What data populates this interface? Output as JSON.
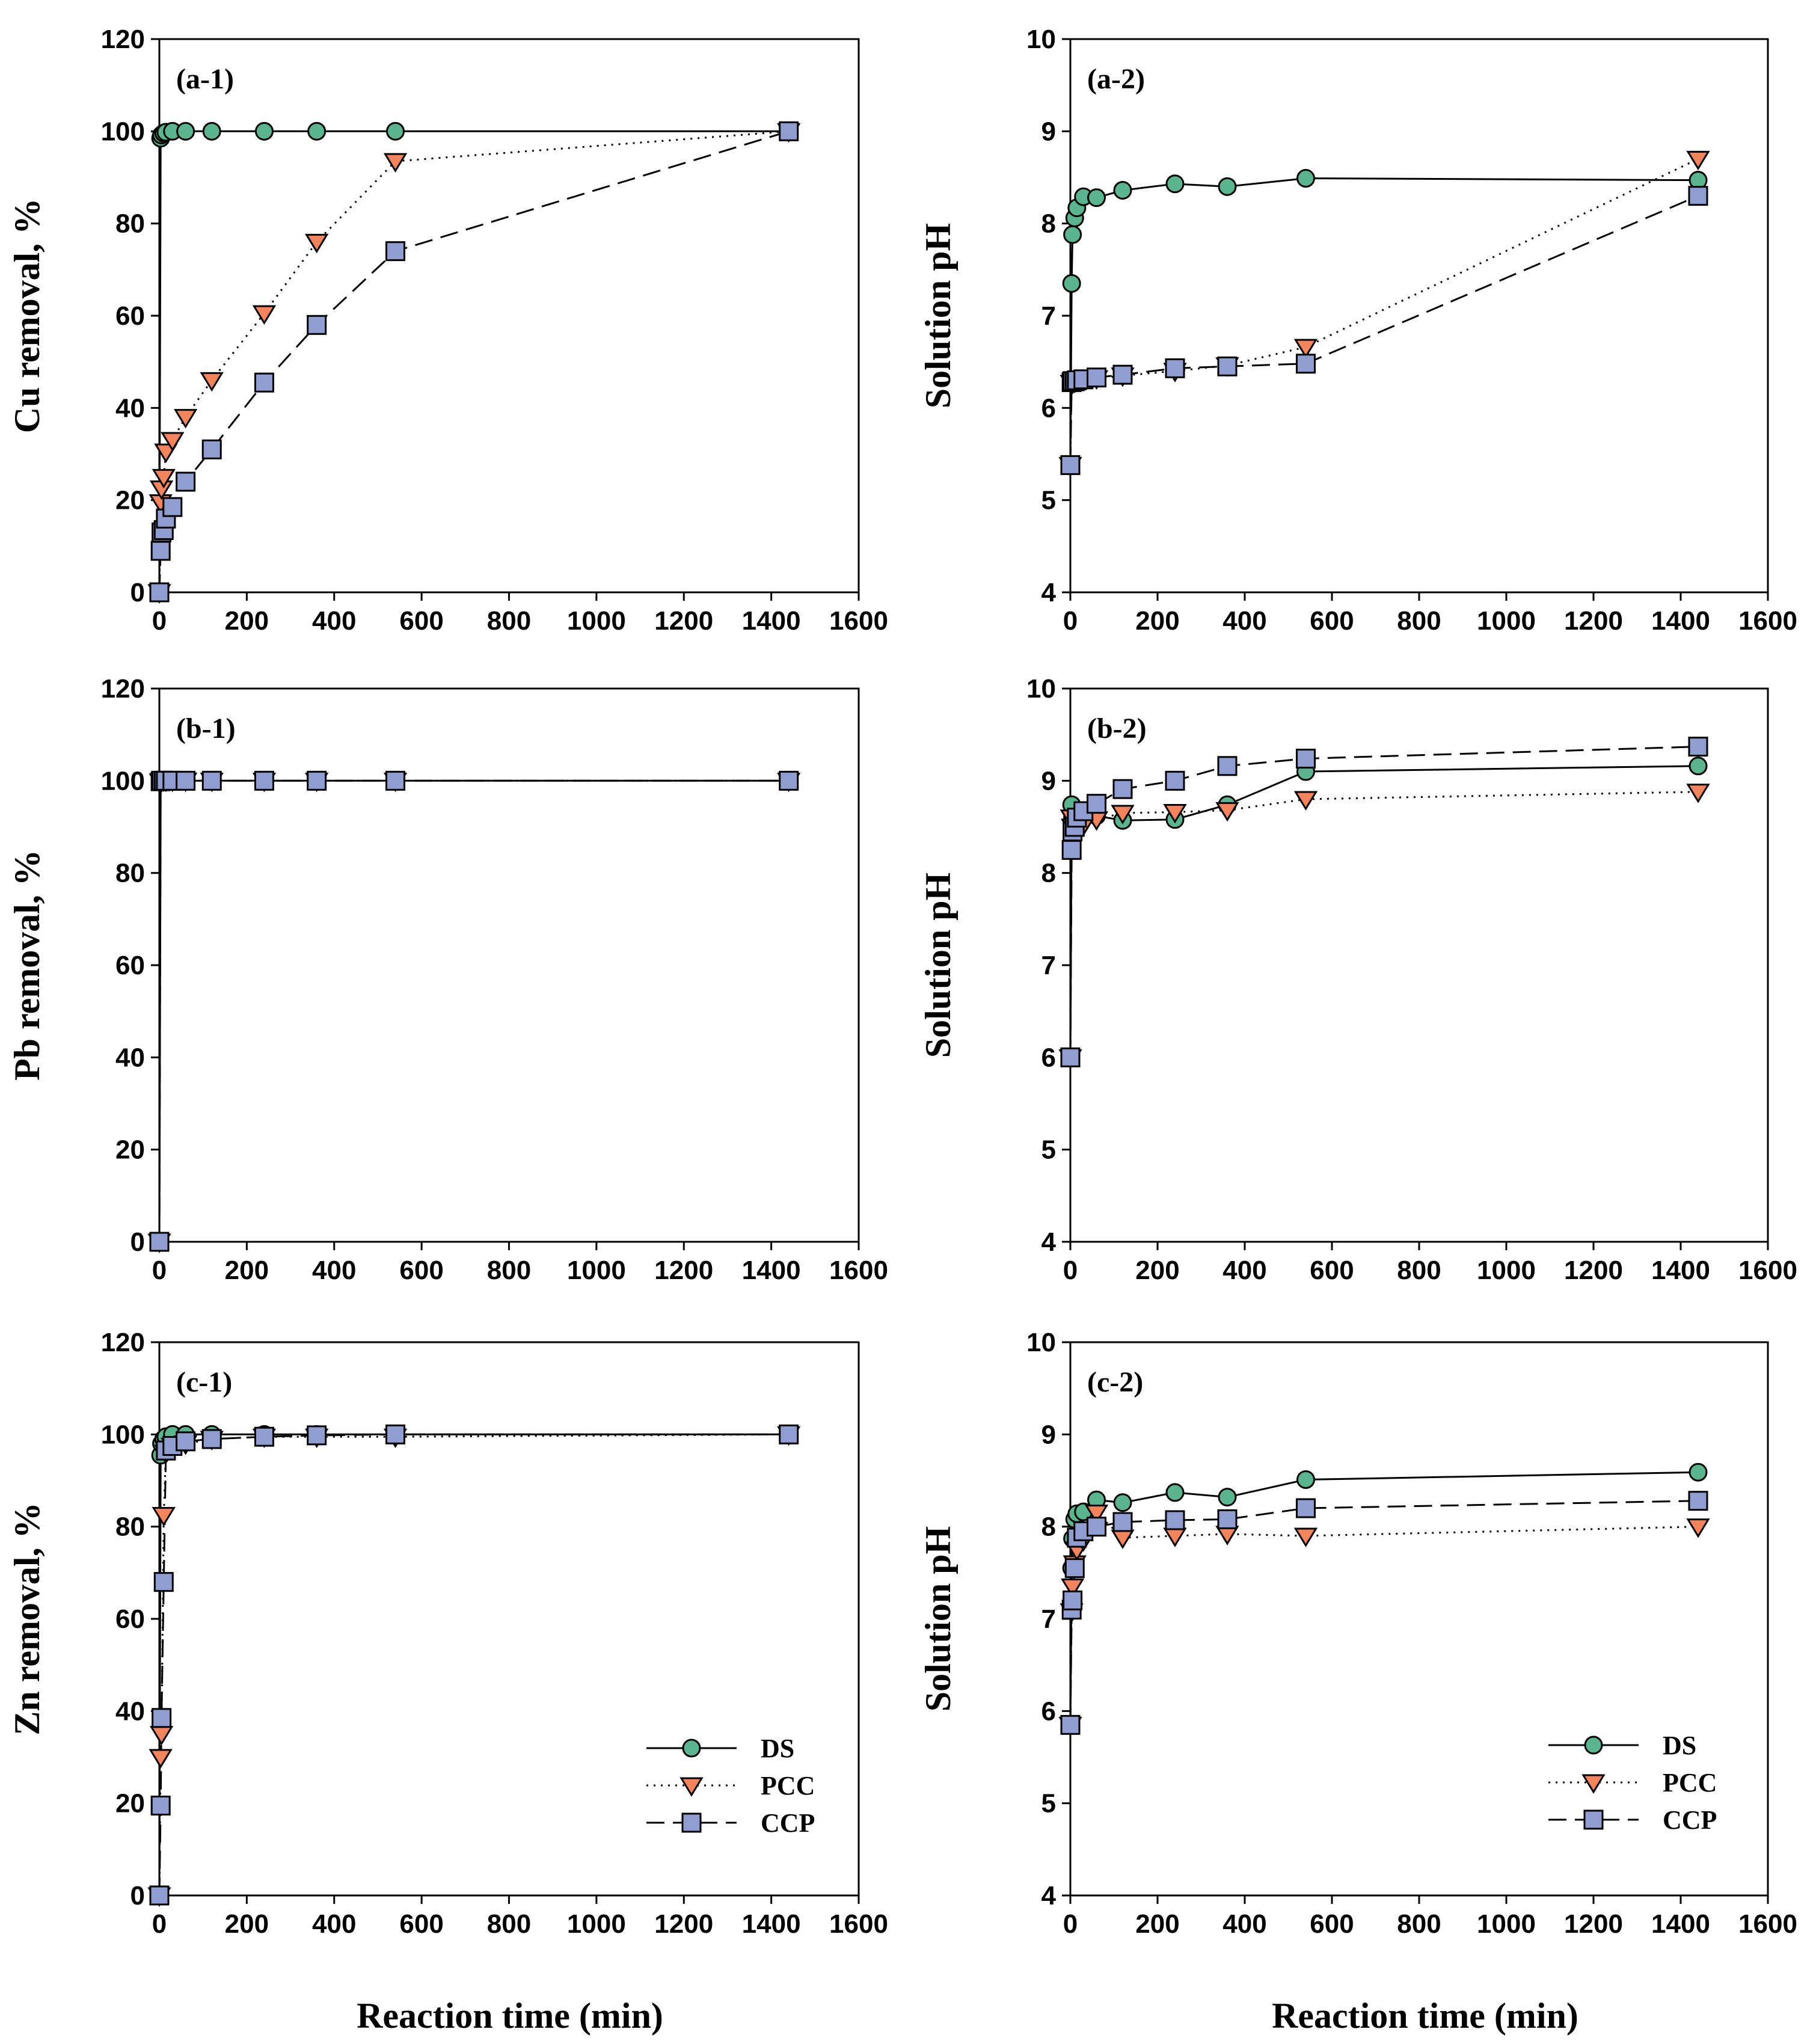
{
  "figure": {
    "xtitle": "Reaction time (min)",
    "legend_labels": [
      "DS",
      "PCC",
      "CCP"
    ]
  },
  "series_style": [
    {
      "name": "DS",
      "marker": "circle",
      "fill": "#5ab58e",
      "line": "solid"
    },
    {
      "name": "PCC",
      "marker": "triangle-down",
      "fill": "#f4845c",
      "line": "dotted"
    },
    {
      "name": "CCP",
      "marker": "square",
      "fill": "#8f9dd0",
      "line": "dashed"
    }
  ],
  "chart_data": [
    {
      "id": "a-1",
      "type": "line",
      "tag": "(a-1)",
      "ylabel": "Cu removal, %",
      "xlabel": "",
      "xlim": [
        0,
        1600
      ],
      "ylim": [
        0,
        120
      ],
      "xticks": [
        0,
        200,
        400,
        600,
        800,
        1000,
        1200,
        1400,
        1600
      ],
      "yticks": [
        0,
        20,
        40,
        60,
        80,
        100,
        120
      ],
      "legend": false,
      "series": [
        {
          "name": "DS",
          "x": [
            0,
            3,
            5,
            10,
            15,
            30,
            60,
            120,
            240,
            360,
            540,
            1440
          ],
          "y": [
            0,
            98.5,
            99.2,
            99.6,
            99.8,
            100,
            100,
            100,
            100,
            100,
            100,
            100
          ]
        },
        {
          "name": "PCC",
          "x": [
            0,
            3,
            5,
            10,
            15,
            30,
            60,
            120,
            240,
            360,
            540,
            1440
          ],
          "y": [
            0,
            19.5,
            22.5,
            25,
            30.5,
            33,
            38,
            46,
            60.5,
            76,
            93.5,
            100
          ]
        },
        {
          "name": "CCP",
          "x": [
            0,
            3,
            5,
            10,
            15,
            30,
            60,
            120,
            240,
            360,
            540,
            1440
          ],
          "y": [
            0,
            9,
            13,
            13.5,
            16,
            18.5,
            24,
            31,
            45.5,
            58,
            74,
            100
          ]
        }
      ]
    },
    {
      "id": "a-2",
      "type": "line",
      "tag": "(a-2)",
      "ylabel": "Solution pH",
      "xlabel": "",
      "xlim": [
        0,
        1600
      ],
      "ylim": [
        4,
        10
      ],
      "xticks": [
        0,
        200,
        400,
        600,
        800,
        1000,
        1200,
        1400,
        1600
      ],
      "yticks": [
        4,
        5,
        6,
        7,
        8,
        9,
        10
      ],
      "legend": false,
      "series": [
        {
          "name": "DS",
          "x": [
            0,
            3,
            5,
            10,
            15,
            30,
            60,
            120,
            240,
            360,
            540,
            1440
          ],
          "y": [
            5.38,
            7.35,
            7.88,
            8.06,
            8.17,
            8.29,
            8.28,
            8.36,
            8.43,
            8.4,
            8.49,
            8.47
          ]
        },
        {
          "name": "PCC",
          "x": [
            0,
            3,
            5,
            10,
            15,
            30,
            60,
            120,
            240,
            360,
            540,
            1440
          ],
          "y": [
            5.38,
            6.27,
            6.27,
            6.28,
            6.29,
            6.3,
            6.32,
            6.35,
            6.4,
            6.46,
            6.66,
            8.7
          ]
        },
        {
          "name": "CCP",
          "x": [
            0,
            3,
            5,
            10,
            15,
            30,
            60,
            120,
            240,
            360,
            540,
            1440
          ],
          "y": [
            5.38,
            6.28,
            6.29,
            6.29,
            6.3,
            6.31,
            6.33,
            6.36,
            6.43,
            6.45,
            6.48,
            8.3
          ]
        }
      ]
    },
    {
      "id": "b-1",
      "type": "line",
      "tag": "(b-1)",
      "ylabel": "Pb removal, %",
      "xlabel": "",
      "xlim": [
        0,
        1600
      ],
      "ylim": [
        0,
        120
      ],
      "xticks": [
        0,
        200,
        400,
        600,
        800,
        1000,
        1200,
        1400,
        1600
      ],
      "yticks": [
        0,
        20,
        40,
        60,
        80,
        100,
        120
      ],
      "legend": false,
      "series": [
        {
          "name": "DS",
          "x": [
            0,
            3,
            5,
            10,
            15,
            30,
            60,
            120,
            240,
            360,
            540,
            1440
          ],
          "y": [
            0,
            100,
            100,
            100,
            100,
            100,
            100,
            100,
            100,
            100,
            100,
            100
          ]
        },
        {
          "name": "PCC",
          "x": [
            0,
            3,
            5,
            10,
            15,
            30,
            60,
            120,
            240,
            360,
            540,
            1440
          ],
          "y": [
            0,
            99.8,
            99.9,
            100,
            100,
            100,
            100,
            100,
            100,
            100,
            100,
            100
          ]
        },
        {
          "name": "CCP",
          "x": [
            0,
            3,
            5,
            10,
            15,
            30,
            60,
            120,
            240,
            360,
            540,
            1440
          ],
          "y": [
            0,
            99.9,
            100,
            100,
            100,
            100,
            100,
            100,
            100,
            100,
            100,
            100
          ]
        }
      ]
    },
    {
      "id": "b-2",
      "type": "line",
      "tag": "(b-2)",
      "ylabel": "Solution pH",
      "xlabel": "",
      "xlim": [
        0,
        1600
      ],
      "ylim": [
        4,
        10
      ],
      "xticks": [
        0,
        200,
        400,
        600,
        800,
        1000,
        1200,
        1400,
        1600
      ],
      "yticks": [
        4,
        5,
        6,
        7,
        8,
        9,
        10
      ],
      "legend": false,
      "series": [
        {
          "name": "DS",
          "x": [
            0,
            3,
            5,
            10,
            15,
            30,
            60,
            120,
            240,
            360,
            540,
            1440
          ],
          "y": [
            6.0,
            8.74,
            8.6,
            8.5,
            8.55,
            8.6,
            8.62,
            8.57,
            8.58,
            8.74,
            9.1,
            9.16
          ]
        },
        {
          "name": "PCC",
          "x": [
            0,
            3,
            5,
            10,
            15,
            30,
            60,
            120,
            240,
            360,
            540,
            1440
          ],
          "y": [
            6.0,
            8.6,
            8.5,
            8.45,
            8.5,
            8.52,
            8.58,
            8.65,
            8.66,
            8.68,
            8.8,
            8.88
          ]
        },
        {
          "name": "CCP",
          "x": [
            0,
            3,
            5,
            10,
            15,
            30,
            60,
            120,
            240,
            360,
            540,
            1440
          ],
          "y": [
            6.0,
            8.25,
            8.45,
            8.5,
            8.6,
            8.67,
            8.75,
            8.91,
            9.0,
            9.16,
            9.24,
            9.37
          ]
        }
      ]
    },
    {
      "id": "c-1",
      "type": "line",
      "tag": "(c-1)",
      "ylabel": "Zn removal, %",
      "xlabel": "",
      "xlim": [
        0,
        1600
      ],
      "ylim": [
        0,
        120
      ],
      "xticks": [
        0,
        200,
        400,
        600,
        800,
        1000,
        1200,
        1400,
        1600
      ],
      "yticks": [
        0,
        20,
        40,
        60,
        80,
        100,
        120
      ],
      "legend": true,
      "series": [
        {
          "name": "DS",
          "x": [
            0,
            3,
            5,
            10,
            15,
            30,
            60,
            120,
            240,
            360,
            540,
            1440
          ],
          "y": [
            0,
            95.5,
            98,
            99,
            99.5,
            100,
            100,
            100,
            100,
            100,
            100,
            100
          ]
        },
        {
          "name": "PCC",
          "x": [
            0,
            3,
            5,
            10,
            15,
            30,
            60,
            120,
            240,
            360,
            540,
            1440
          ],
          "y": [
            0,
            30,
            35,
            82.5,
            96,
            97.5,
            98,
            99,
            99.5,
            99.5,
            99.5,
            100
          ]
        },
        {
          "name": "CCP",
          "x": [
            0,
            3,
            5,
            10,
            15,
            30,
            60,
            120,
            240,
            360,
            540,
            1440
          ],
          "y": [
            0,
            19.5,
            38.5,
            68,
            96.5,
            97.5,
            98.5,
            99,
            99.5,
            99.8,
            100,
            100
          ]
        }
      ]
    },
    {
      "id": "c-2",
      "type": "line",
      "tag": "(c-2)",
      "ylabel": "Solution pH",
      "xlabel": "",
      "xlim": [
        0,
        1600
      ],
      "ylim": [
        4,
        10
      ],
      "xticks": [
        0,
        200,
        400,
        600,
        800,
        1000,
        1200,
        1400,
        1600
      ],
      "yticks": [
        4,
        5,
        6,
        7,
        8,
        9,
        10
      ],
      "legend": true,
      "series": [
        {
          "name": "DS",
          "x": [
            0,
            3,
            5,
            10,
            15,
            30,
            60,
            120,
            240,
            360,
            540,
            1440
          ],
          "y": [
            5.85,
            7.55,
            7.87,
            8.08,
            8.14,
            8.16,
            8.29,
            8.26,
            8.37,
            8.32,
            8.51,
            8.59
          ]
        },
        {
          "name": "PCC",
          "x": [
            0,
            3,
            5,
            10,
            15,
            30,
            60,
            120,
            240,
            360,
            540,
            1440
          ],
          "y": [
            5.85,
            7.08,
            7.35,
            7.6,
            7.75,
            7.85,
            8.15,
            7.88,
            7.9,
            7.92,
            7.9,
            8.0
          ]
        },
        {
          "name": "CCP",
          "x": [
            0,
            3,
            5,
            10,
            15,
            30,
            60,
            120,
            240,
            360,
            540,
            1440
          ],
          "y": [
            5.85,
            7.1,
            7.2,
            7.55,
            7.88,
            7.95,
            8.0,
            8.05,
            8.07,
            8.08,
            8.2,
            8.28
          ]
        }
      ]
    }
  ]
}
